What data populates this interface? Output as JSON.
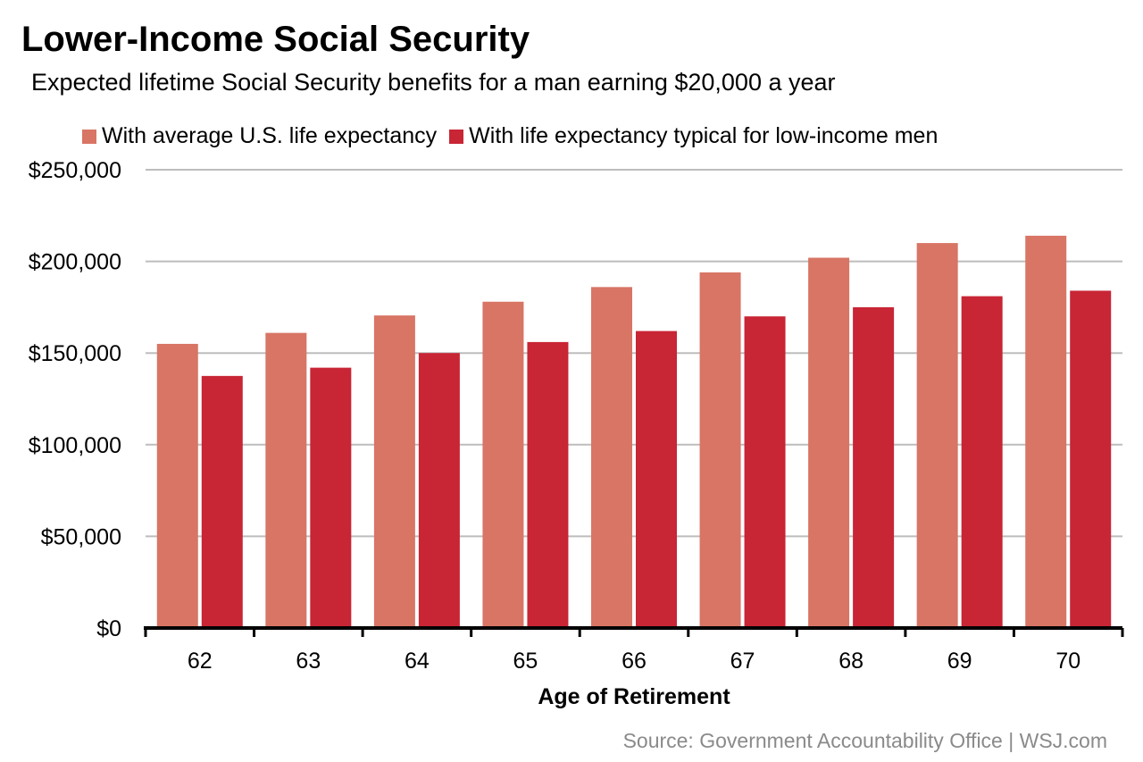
{
  "chart_data": {
    "type": "bar",
    "title": "Lower-Income Social Security",
    "subtitle": "Expected lifetime Social Security benefits for a man earning $20,000 a year",
    "xlabel": "Age of Retirement",
    "ylabel": "",
    "categories": [
      "62",
      "63",
      "64",
      "65",
      "66",
      "67",
      "68",
      "69",
      "70"
    ],
    "series": [
      {
        "name": "With average U.S. life expectancy",
        "color": "#d87565",
        "values": [
          155000,
          161000,
          170500,
          178000,
          186000,
          194000,
          202000,
          210000,
          214000
        ]
      },
      {
        "name": "With life expectancy typical for low-income men",
        "color": "#c82535",
        "values": [
          137500,
          142000,
          150000,
          156000,
          162000,
          170000,
          175000,
          181000,
          184000
        ]
      }
    ],
    "ylim": [
      0,
      250000
    ],
    "yticks": [
      0,
      50000,
      100000,
      150000,
      200000,
      250000
    ],
    "ytick_labels": [
      "$0",
      "$50,000",
      "$100,000",
      "$150,000",
      "$200,000",
      "$250,000"
    ],
    "grid": true,
    "legend_position": "top",
    "source": "Source: Government Accountability Office  |  WSJ.com"
  }
}
